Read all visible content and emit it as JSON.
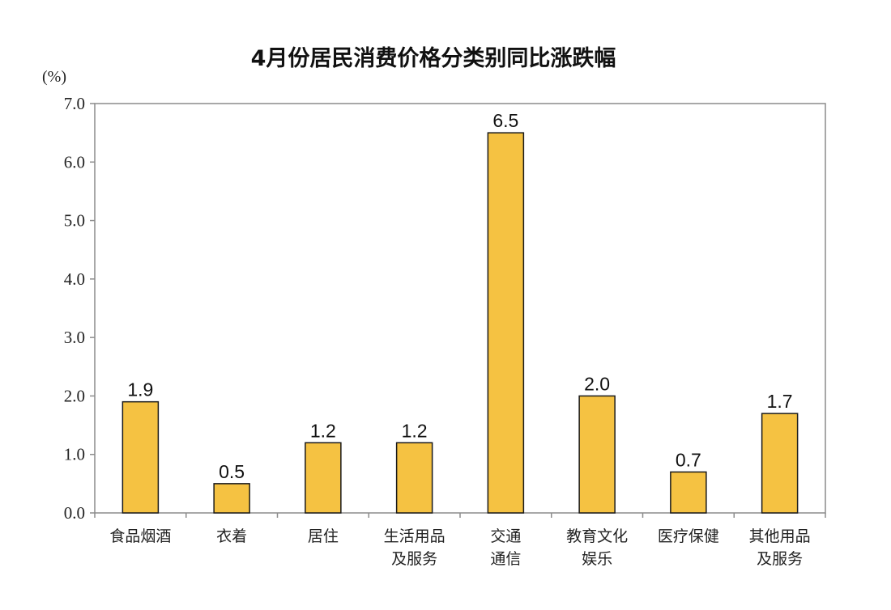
{
  "chart_data": {
    "type": "bar",
    "title": "4月份居民消费价格分类别同比涨跌幅",
    "ylabel": "(%)",
    "xlabel": "",
    "ylim": [
      0,
      7
    ],
    "yticks": [
      "0.0",
      "1.0",
      "2.0",
      "3.0",
      "4.0",
      "5.0",
      "6.0",
      "7.0"
    ],
    "grid": false,
    "legend": "none",
    "categories": [
      [
        "食品烟酒"
      ],
      [
        "衣着"
      ],
      [
        "居住"
      ],
      [
        "生活用品",
        "及服务"
      ],
      [
        "交通",
        "通信"
      ],
      [
        "教育文化",
        "娱乐"
      ],
      [
        "医疗保健"
      ],
      [
        "其他用品",
        "及服务"
      ]
    ],
    "values": [
      1.9,
      0.5,
      1.2,
      1.2,
      6.5,
      2.0,
      0.7,
      1.7
    ],
    "data_labels": [
      "1.9",
      "0.5",
      "1.2",
      "1.2",
      "6.5",
      "2.0",
      "0.7",
      "1.7"
    ],
    "bar_color": "#f5c242",
    "bar_edge_color": "#1a1a1a",
    "axis_color": "#8c8c8c"
  }
}
